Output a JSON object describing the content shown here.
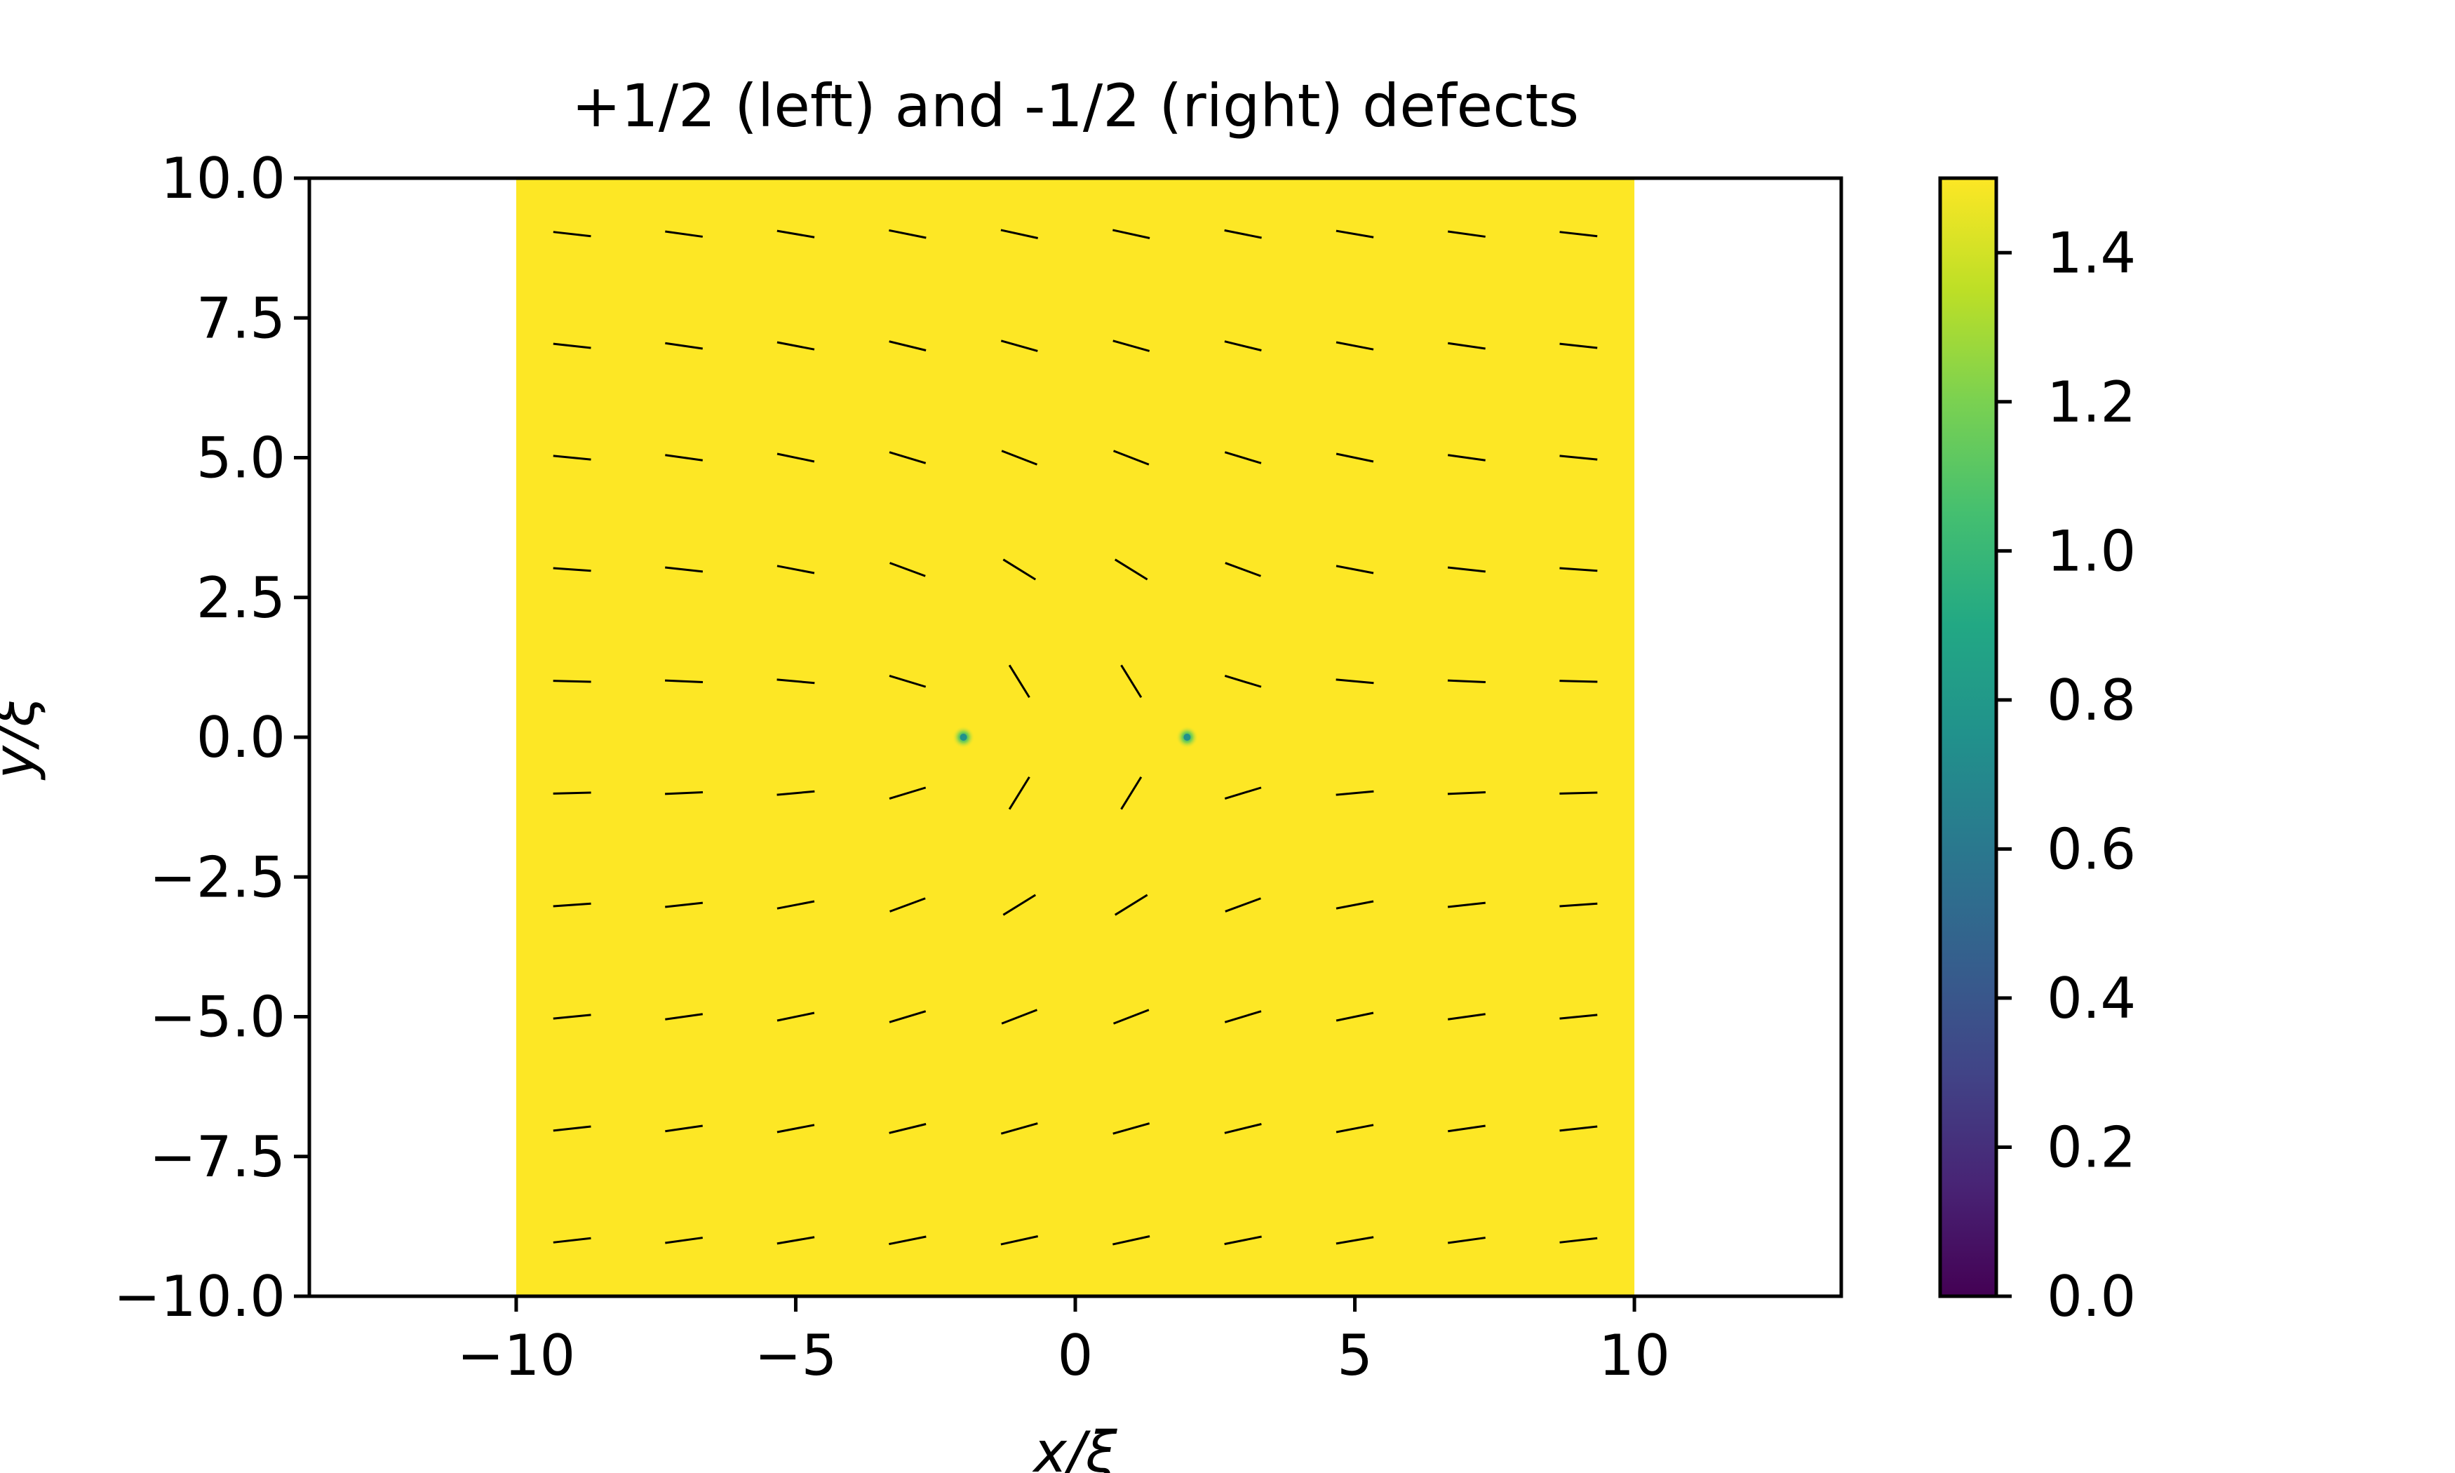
{
  "chart_data": {
    "type": "heatmap",
    "title": "+1/2 (left) and -1/2 (right) defects",
    "xlabel": "x/ξ",
    "ylabel": "y/ξ",
    "xlim": [
      -13.7,
      13.7
    ],
    "ylim": [
      -10,
      10
    ],
    "extent": [
      -10,
      10,
      -10,
      10
    ],
    "xticks": [
      -10,
      -5,
      0,
      5,
      10
    ],
    "xtick_labels": [
      "−10",
      "−5",
      "0",
      "5",
      "10"
    ],
    "yticks": [
      -10,
      -7.5,
      -5,
      -2.5,
      0,
      2.5,
      5,
      7.5,
      10
    ],
    "ytick_labels": [
      "−10.0",
      "−7.5",
      "−5.0",
      "−2.5",
      "0.0",
      "2.5",
      "5.0",
      "7.5",
      "10.0"
    ],
    "grid": false,
    "colormap": "viridis",
    "clim": [
      0,
      1.5
    ],
    "field_value": 1.5,
    "defects": [
      {
        "charge": "+1/2",
        "x": -2,
        "y": 0,
        "value": 0.8
      },
      {
        "charge": "-1/2",
        "x": 2,
        "y": 0,
        "value": 0.8
      }
    ],
    "director_field": {
      "x": [
        -9,
        -7,
        -5,
        -3,
        -1,
        1,
        3,
        5,
        7,
        9
      ],
      "y": [
        -9,
        -7,
        -5,
        -3,
        -1,
        1,
        3,
        5,
        7,
        9
      ],
      "color": "#000000"
    },
    "colorbar": {
      "ticks": [
        0,
        0.2,
        0.4,
        0.6,
        0.8,
        1.0,
        1.2,
        1.4
      ],
      "tick_labels": [
        "0.0",
        "0.2",
        "0.4",
        "0.6",
        "0.8",
        "1.0",
        "1.2",
        "1.4"
      ],
      "range": [
        0,
        1.5
      ]
    }
  }
}
